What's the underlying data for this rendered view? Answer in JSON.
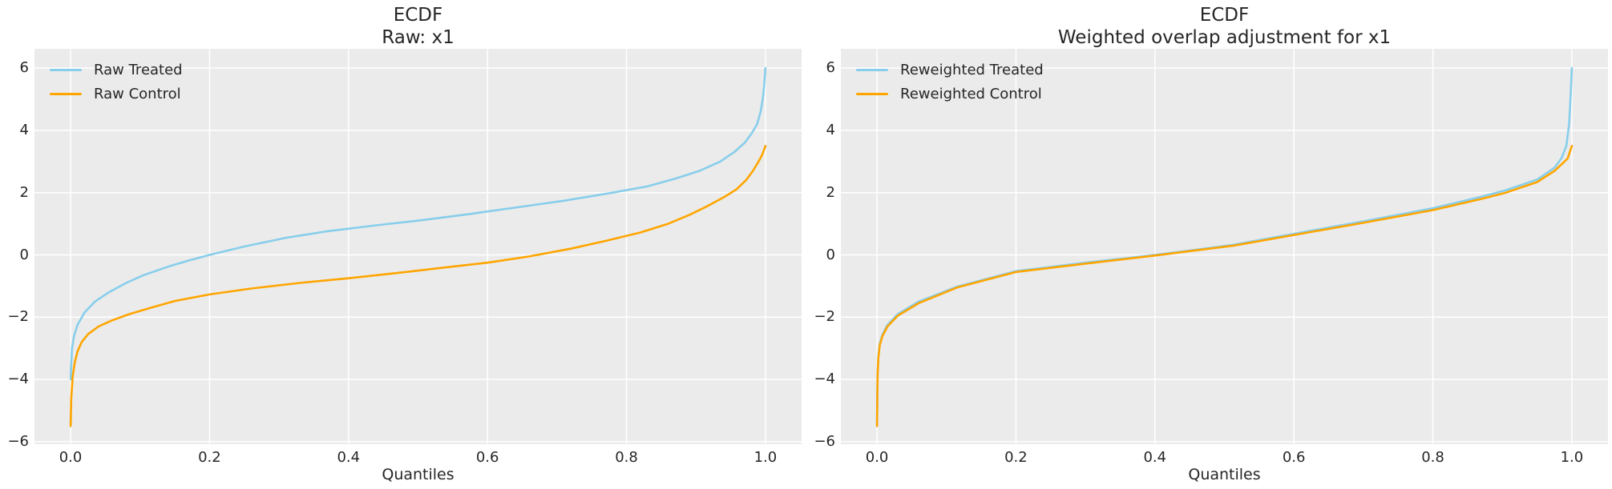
{
  "figure": {
    "background": "#ffffff",
    "axes_background": "#ebebeb",
    "grid_color": "#ffffff",
    "text_color": "#262626"
  },
  "chart_data": [
    {
      "type": "line",
      "title_line1": "ECDF",
      "title_line2": "Raw: x1",
      "xlabel": "Quantiles",
      "xlim": [
        -0.052,
        1.052
      ],
      "ylim": [
        -6.08,
        6.62
      ],
      "grid": true,
      "legend_position": "upper-left",
      "xticks": [
        {
          "v": 0.0,
          "label": "0.0"
        },
        {
          "v": 0.2,
          "label": "0.2"
        },
        {
          "v": 0.4,
          "label": "0.4"
        },
        {
          "v": 0.6,
          "label": "0.6"
        },
        {
          "v": 0.8,
          "label": "0.8"
        },
        {
          "v": 1.0,
          "label": "1.0"
        }
      ],
      "yticks": [
        {
          "v": 6,
          "label": "6"
        },
        {
          "v": 4,
          "label": "4"
        },
        {
          "v": 2,
          "label": "2"
        },
        {
          "v": 0,
          "label": "0"
        },
        {
          "v": -2,
          "label": "−2"
        },
        {
          "v": -4,
          "label": "−4"
        },
        {
          "v": -6,
          "label": "−6"
        }
      ],
      "series": [
        {
          "name": "Raw Treated",
          "color": "#87CEEB",
          "x": [
            0,
            0.002,
            0.005,
            0.01,
            0.02,
            0.035,
            0.055,
            0.08,
            0.105,
            0.14,
            0.17,
            0.2,
            0.25,
            0.31,
            0.37,
            0.44,
            0.5,
            0.57,
            0.64,
            0.71,
            0.78,
            0.83,
            0.87,
            0.905,
            0.935,
            0.955,
            0.97,
            0.98,
            0.988,
            0.993,
            0.996,
            0.998,
            1.0
          ],
          "y": [
            -4.0,
            -3.0,
            -2.6,
            -2.25,
            -1.85,
            -1.5,
            -1.2,
            -0.9,
            -0.65,
            -0.38,
            -0.18,
            0.0,
            0.27,
            0.55,
            0.76,
            0.95,
            1.1,
            1.3,
            1.52,
            1.74,
            2.0,
            2.2,
            2.45,
            2.7,
            3.0,
            3.3,
            3.6,
            3.9,
            4.2,
            4.6,
            5.0,
            5.4,
            6.0
          ]
        },
        {
          "name": "Raw Control",
          "color": "#FFA500",
          "x": [
            0,
            0.001,
            0.003,
            0.006,
            0.01,
            0.016,
            0.025,
            0.04,
            0.06,
            0.085,
            0.115,
            0.15,
            0.2,
            0.26,
            0.33,
            0.4,
            0.47,
            0.54,
            0.6,
            0.66,
            0.72,
            0.77,
            0.82,
            0.86,
            0.89,
            0.915,
            0.94,
            0.958,
            0.972,
            0.982,
            0.99,
            0.995,
            1.0
          ],
          "y": [
            -5.5,
            -4.6,
            -3.9,
            -3.45,
            -3.1,
            -2.8,
            -2.55,
            -2.3,
            -2.1,
            -1.9,
            -1.7,
            -1.48,
            -1.27,
            -1.08,
            -0.9,
            -0.75,
            -0.58,
            -0.4,
            -0.25,
            -0.05,
            0.2,
            0.45,
            0.72,
            1.0,
            1.28,
            1.55,
            1.85,
            2.1,
            2.4,
            2.7,
            3.0,
            3.2,
            3.5
          ]
        }
      ]
    },
    {
      "type": "line",
      "title_line1": "ECDF",
      "title_line2": "Weighted overlap adjustment for x1",
      "xlabel": "Quantiles",
      "xlim": [
        -0.052,
        1.052
      ],
      "ylim": [
        -6.08,
        6.62
      ],
      "grid": true,
      "legend_position": "upper-left",
      "xticks": [
        {
          "v": 0.0,
          "label": "0.0"
        },
        {
          "v": 0.2,
          "label": "0.2"
        },
        {
          "v": 0.4,
          "label": "0.4"
        },
        {
          "v": 0.6,
          "label": "0.6"
        },
        {
          "v": 0.8,
          "label": "0.8"
        },
        {
          "v": 1.0,
          "label": "1.0"
        }
      ],
      "yticks": [
        {
          "v": 6,
          "label": "6"
        },
        {
          "v": 4,
          "label": "4"
        },
        {
          "v": 2,
          "label": "2"
        },
        {
          "v": 0,
          "label": "0"
        },
        {
          "v": -2,
          "label": "−2"
        },
        {
          "v": -4,
          "label": "−4"
        },
        {
          "v": -6,
          "label": "−6"
        }
      ],
      "series": [
        {
          "name": "Reweighted Treated",
          "color": "#87CEEB",
          "x": [
            0,
            0.0005,
            0.001,
            0.002,
            0.004,
            0.008,
            0.015,
            0.03,
            0.06,
            0.115,
            0.2,
            0.3,
            0.4,
            0.46,
            0.514,
            0.6,
            0.7,
            0.8,
            0.87,
            0.905,
            0.95,
            0.975,
            0.985,
            0.992,
            0.996,
            0.998,
            1.0
          ],
          "y": [
            -5.45,
            -4.4,
            -3.75,
            -3.25,
            -2.85,
            -2.55,
            -2.25,
            -1.9,
            -1.5,
            -1.02,
            -0.52,
            -0.25,
            0.0,
            0.17,
            0.33,
            0.68,
            1.08,
            1.5,
            1.87,
            2.08,
            2.42,
            2.8,
            3.1,
            3.5,
            4.2,
            5.0,
            6.0
          ]
        },
        {
          "name": "Reweighted Control",
          "color": "#FFA500",
          "x": [
            0,
            0.0005,
            0.001,
            0.002,
            0.004,
            0.008,
            0.015,
            0.03,
            0.06,
            0.115,
            0.2,
            0.3,
            0.4,
            0.46,
            0.514,
            0.6,
            0.7,
            0.8,
            0.87,
            0.905,
            0.95,
            0.975,
            0.987,
            0.994,
            1.0
          ],
          "y": [
            -5.5,
            -4.5,
            -3.8,
            -3.3,
            -2.9,
            -2.6,
            -2.3,
            -1.95,
            -1.55,
            -1.05,
            -0.55,
            -0.28,
            -0.02,
            0.15,
            0.3,
            0.64,
            1.03,
            1.44,
            1.8,
            2.0,
            2.34,
            2.7,
            2.95,
            3.1,
            3.5
          ]
        }
      ]
    }
  ]
}
